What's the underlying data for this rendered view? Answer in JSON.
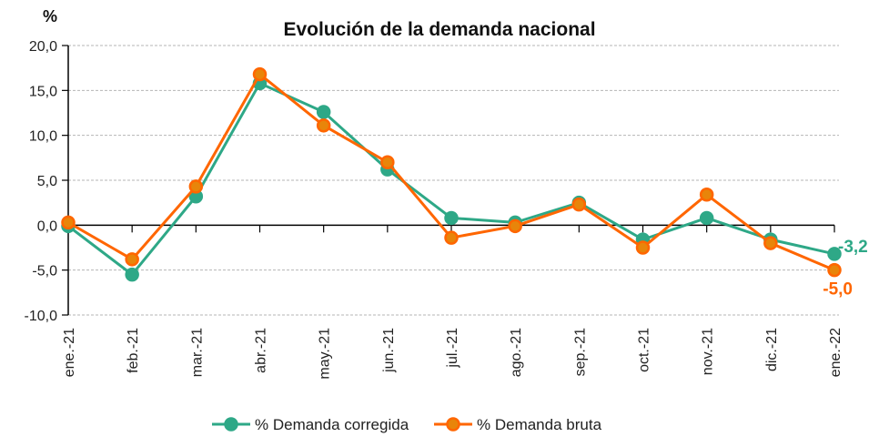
{
  "chart_data": {
    "type": "line",
    "title": "Evolución de la demanda nacional",
    "ylabel": "%",
    "xlabel": "",
    "ylim": [
      -10,
      20
    ],
    "yticks": [
      20,
      15,
      10,
      5,
      0,
      -5,
      -10
    ],
    "ytick_labels": [
      "20,0",
      "15,0",
      "10,0",
      "5,0",
      "0,0",
      "-5,0",
      "-10,0"
    ],
    "grid": true,
    "legend_position": "bottom",
    "categories": [
      "ene.-21",
      "feb.-21",
      "mar.-21",
      "abr.-21",
      "may.-21",
      "jun.-21",
      "jul.-21",
      "ago.-21",
      "sep.-21",
      "oct.-21",
      "nov.-21",
      "dic.-21",
      "ene.-22"
    ],
    "series": [
      {
        "name": "% Demanda corregida",
        "color": "#2ea887",
        "values": [
          -0.1,
          -5.5,
          3.2,
          15.8,
          12.6,
          6.2,
          0.8,
          0.3,
          2.5,
          -1.6,
          0.8,
          -1.6,
          -3.2
        ],
        "end_label": "-3,2"
      },
      {
        "name": "% Demanda bruta",
        "color": "#ff6600",
        "marker_fill": "#e8850a",
        "values": [
          0.3,
          -3.8,
          4.3,
          16.8,
          11.1,
          7.0,
          -1.4,
          -0.1,
          2.3,
          -2.5,
          3.4,
          -2.0,
          -5.0
        ],
        "end_label": "-5,0"
      }
    ]
  }
}
